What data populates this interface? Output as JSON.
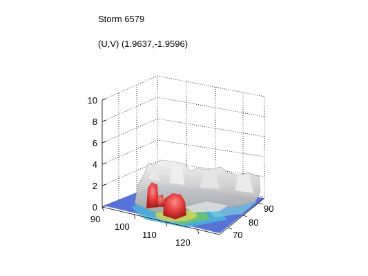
{
  "figure": {
    "title": "Storm 6579",
    "subtitle": "(U,V) (1.9637,-1.9596)"
  },
  "axes": {
    "z_ticks": [
      "0",
      "2",
      "4",
      "6",
      "8",
      "10"
    ],
    "x_ticks": [
      "90",
      "100",
      "110",
      "120"
    ],
    "y_ticks": [
      "70",
      "80",
      "90"
    ]
  },
  "colors": {
    "grid": "#000000",
    "isosurface_gray": "#c8c8c8",
    "isosurface_red": "#e04040",
    "base_blue": "#3050c8",
    "base_cyan": "#40c0d0",
    "base_green": "#60c060"
  }
}
